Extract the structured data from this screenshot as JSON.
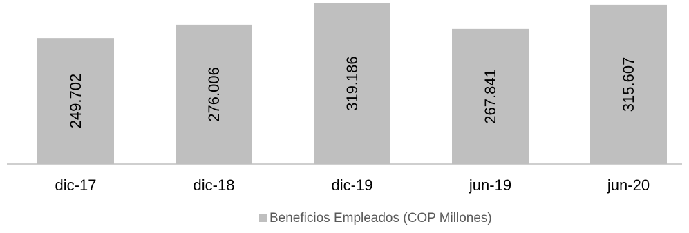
{
  "chart_data": {
    "type": "bar",
    "categories": [
      "dic-17",
      "dic-18",
      "dic-19",
      "jun-19",
      "jun-20"
    ],
    "series": [
      {
        "name": "Beneficios Empleados (COP Millones)",
        "values": [
          249702,
          276006,
          319186,
          267841,
          315607
        ],
        "data_labels": [
          "249.702",
          "276.006",
          "319.186",
          "267.841",
          "315.607"
        ],
        "color": "#bfbfbf"
      }
    ],
    "ylim": [
      0,
      325000
    ],
    "grid": false,
    "legend": "bottom-center",
    "axis_color": "#bfbfbf",
    "text_color": "#000000",
    "legend_text_color": "#595959"
  }
}
